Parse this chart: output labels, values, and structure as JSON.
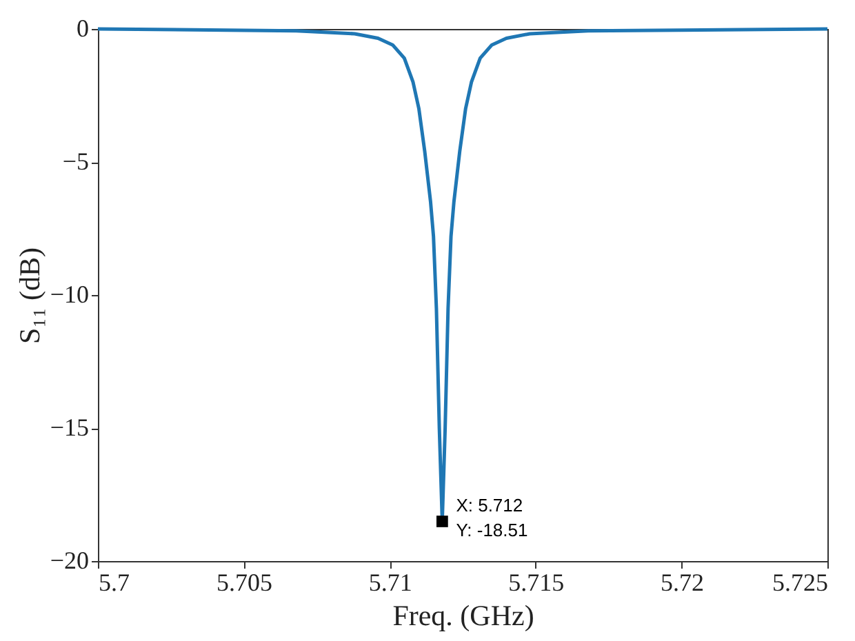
{
  "chart_data": {
    "type": "line",
    "xlabel": "Freq. (GHz)",
    "ylabel": "S₁₁ (dB)",
    "x": [
      5.7,
      5.7068,
      5.7088,
      5.7096,
      5.7101,
      5.7105,
      5.7108,
      5.711,
      5.7112,
      5.7114,
      5.7115,
      5.7116,
      5.7117,
      5.7118,
      5.7119,
      5.712,
      5.7121,
      5.7122,
      5.7124,
      5.7126,
      5.7128,
      5.7131,
      5.7135,
      5.714,
      5.7148,
      5.7168,
      5.725
    ],
    "series": [
      {
        "color": "#1f77b4",
        "values": [
          0,
          -0.07,
          -0.18,
          -0.35,
          -0.6,
          -1.1,
          -2.0,
          -3.0,
          -4.6,
          -6.5,
          -7.8,
          -10.5,
          -15.0,
          -18.51,
          -15.0,
          -10.5,
          -7.8,
          -6.5,
          -4.6,
          -3.0,
          -2.0,
          -1.1,
          -0.6,
          -0.35,
          -0.18,
          -0.07,
          0
        ]
      }
    ],
    "xlim": [
      5.7,
      5.725
    ],
    "xticks": [
      5.7,
      5.705,
      5.71,
      5.715,
      5.72,
      5.725
    ],
    "ylim": [
      -20,
      0
    ],
    "yticks": [
      -20,
      -15,
      -10,
      -5,
      0
    ],
    "grid": false,
    "marker": "none",
    "line_style": "solid",
    "annotations": [
      {
        "text": "X: 5.712\nY: -18.51",
        "x": 5.7118,
        "y": -18.51
      }
    ]
  }
}
